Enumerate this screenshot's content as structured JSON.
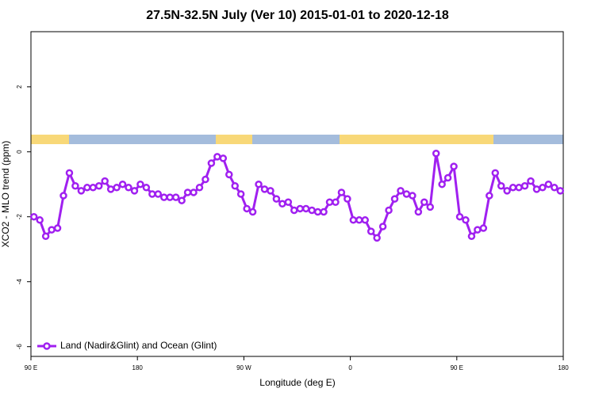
{
  "chart_data": {
    "type": "line",
    "title": "27.5N-32.5N July (Ver 10)   2015-01-01 to 2020-12-18",
    "x_label": "Longitude (deg E)",
    "y_label": "XCO2 - MLO trend (ppm)",
    "x": [
      92.5,
      97.5,
      102.5,
      107.5,
      112.5,
      117.5,
      122.5,
      127.5,
      132.5,
      137.5,
      142.5,
      147.5,
      152.5,
      157.5,
      162.5,
      167.5,
      172.5,
      177.5,
      182.5,
      187.5,
      192.5,
      197.5,
      202.5,
      207.5,
      212.5,
      217.5,
      222.5,
      227.5,
      232.5,
      237.5,
      242.5,
      247.5,
      252.5,
      257.5,
      262.5,
      267.5,
      272.5,
      277.5,
      282.5,
      287.5,
      292.5,
      297.5,
      302.5,
      307.5,
      312.5,
      317.5,
      322.5,
      327.5,
      332.5,
      337.5,
      342.5,
      347.5,
      352.5,
      357.5,
      362.5,
      367.5,
      372.5,
      377.5,
      382.5,
      387.5,
      392.5,
      397.5,
      402.5,
      407.5,
      412.5,
      417.5,
      422.5,
      427.5,
      432.5,
      437.5,
      442.5,
      447.5,
      452.5,
      457.5,
      462.5,
      467.5,
      472.5,
      477.5,
      482.5,
      487.5,
      492.5,
      497.5,
      502.5,
      507.5,
      512.5,
      517.5,
      522.5,
      527.5,
      532.5,
      537.5
    ],
    "series": [
      {
        "name": "Land (Nadir&Glint) and Ocean (Glint)",
        "color": "#a020f0",
        "values": [
          -2.0,
          -2.1,
          -2.6,
          -2.4,
          -2.35,
          -1.35,
          -0.65,
          -1.05,
          -1.2,
          -1.1,
          -1.1,
          -1.05,
          -0.9,
          -1.15,
          -1.1,
          -1.0,
          -1.1,
          -1.2,
          -1.0,
          -1.1,
          -1.3,
          -1.3,
          -1.4,
          -1.4,
          -1.4,
          -1.5,
          -1.25,
          -1.25,
          -1.1,
          -0.85,
          -0.35,
          -0.15,
          -0.2,
          -0.7,
          -1.05,
          -1.3,
          -1.75,
          -1.85,
          -1.0,
          -1.15,
          -1.2,
          -1.45,
          -1.6,
          -1.55,
          -1.8,
          -1.75,
          -1.75,
          -1.8,
          -1.85,
          -1.85,
          -1.55,
          -1.55,
          -1.25,
          -1.45,
          -2.1,
          -2.1,
          -2.1,
          -2.45,
          -2.65,
          -2.3,
          -1.8,
          -1.45,
          -1.2,
          -1.3,
          -1.35,
          -1.85,
          -1.55,
          -1.7,
          -0.05,
          -1.0,
          -0.8,
          -0.45,
          -2.0,
          -2.1,
          -2.6,
          -2.4,
          -2.35,
          -1.35,
          -0.65,
          -1.05,
          -1.2,
          -1.1,
          -1.1,
          -1.05,
          -0.9,
          -1.15,
          -1.1,
          -1.0,
          -1.1,
          -1.2
        ]
      }
    ],
    "xlim": [
      90,
      540
    ],
    "xticks": [
      {
        "value": 90,
        "label": "90 E"
      },
      180,
      {
        "value": 270,
        "label": "90 W"
      },
      {
        "value": 360,
        "label": "0"
      },
      {
        "value": 450,
        "label": "90 E"
      },
      {
        "value": 540,
        "label": "180"
      }
    ],
    "ylim": [
      -6.3,
      3.7
    ],
    "yticks": [
      -6,
      -4,
      -2,
      0,
      2
    ],
    "legend": "bottom-left"
  }
}
